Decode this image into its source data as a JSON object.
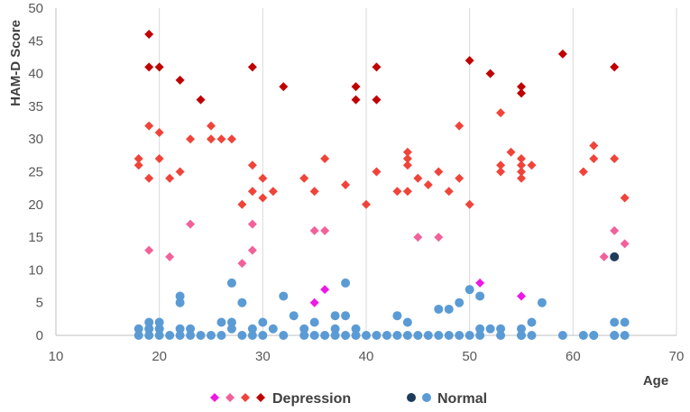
{
  "chart_data": {
    "type": "scatter",
    "xlabel": "Age",
    "ylabel": "HAM-D Score",
    "xlim": [
      10,
      70
    ],
    "ylim": [
      0,
      50
    ],
    "x_ticks": [
      "10",
      "20",
      "30",
      "40",
      "50",
      "60",
      "70"
    ],
    "y_ticks": [
      "0",
      "5",
      "10",
      "15",
      "20",
      "25",
      "30",
      "35",
      "40",
      "45",
      "50"
    ],
    "grid": "vertical",
    "legend_position": "bottom",
    "legend": {
      "depression_label": "Depression",
      "normal_label": "Normal"
    },
    "colors": {
      "severe": "#c00000",
      "moderate": "#f0443a",
      "mild": "#f2619a",
      "minimal": "#ee18e6",
      "normal": "#5b9bd5",
      "normal_dark": "#1f3b5a"
    },
    "series": [
      {
        "name": "Depression (severe)",
        "marker": "diamond",
        "color_key": "severe",
        "x": [
          19,
          19,
          20,
          22,
          24,
          29,
          32,
          39,
          39,
          41,
          41,
          50,
          52,
          55,
          55,
          59,
          64
        ],
        "y": [
          46,
          41,
          41,
          39,
          36,
          41,
          38,
          38,
          36,
          41,
          36,
          42,
          40,
          38,
          37,
          43,
          41
        ]
      },
      {
        "name": "Depression (moderate)",
        "marker": "diamond",
        "color_key": "moderate",
        "x": [
          18,
          18,
          19,
          19,
          20,
          20,
          21,
          22,
          23,
          25,
          25,
          26,
          27,
          28,
          29,
          29,
          30,
          30,
          31,
          34,
          35,
          36,
          38,
          40,
          41,
          43,
          44,
          44,
          44,
          44,
          45,
          46,
          47,
          48,
          49,
          49,
          50,
          53,
          53,
          53,
          54,
          55,
          55,
          55,
          55,
          56,
          61,
          62,
          62,
          64,
          65
        ],
        "y": [
          27,
          26,
          32,
          24,
          31,
          27,
          24,
          25,
          30,
          32,
          30,
          30,
          30,
          20,
          26,
          22,
          24,
          21,
          22,
          24,
          22,
          27,
          23,
          20,
          25,
          22,
          28,
          27,
          26,
          22,
          24,
          23,
          25,
          22,
          32,
          24,
          20,
          34,
          26,
          25,
          28,
          27,
          26,
          25,
          24,
          26,
          25,
          29,
          27,
          27,
          21
        ]
      },
      {
        "name": "Depression (mild)",
        "marker": "diamond",
        "color_key": "mild",
        "x": [
          19,
          21,
          23,
          28,
          29,
          29,
          35,
          36,
          45,
          47,
          63,
          64,
          65
        ],
        "y": [
          13,
          12,
          17,
          11,
          17,
          13,
          16,
          16,
          15,
          15,
          12,
          16,
          14
        ]
      },
      {
        "name": "Depression (minimal)",
        "marker": "diamond",
        "color_key": "minimal",
        "x": [
          35,
          36,
          51,
          55
        ],
        "y": [
          5,
          7,
          8,
          6
        ]
      },
      {
        "name": "Normal",
        "marker": "circle",
        "color_key": "normal",
        "x": [
          18,
          18,
          19,
          19,
          19,
          19,
          20,
          20,
          20,
          20,
          21,
          22,
          22,
          22,
          22,
          23,
          23,
          24,
          25,
          26,
          26,
          27,
          27,
          27,
          28,
          28,
          29,
          29,
          30,
          30,
          31,
          32,
          32,
          33,
          34,
          34,
          35,
          35,
          36,
          37,
          37,
          37,
          38,
          38,
          38,
          39,
          39,
          40,
          41,
          42,
          43,
          43,
          44,
          44,
          45,
          46,
          47,
          47,
          48,
          48,
          49,
          49,
          50,
          50,
          51,
          51,
          51,
          52,
          53,
          53,
          55,
          55,
          55,
          56,
          56,
          57,
          59,
          61,
          62,
          62,
          64,
          64,
          64,
          65,
          65
        ],
        "y": [
          1,
          0,
          2,
          1,
          1,
          0,
          2,
          1,
          1,
          0,
          0,
          6,
          5,
          1,
          0,
          1,
          0,
          0,
          0,
          2,
          0,
          8,
          2,
          1,
          5,
          0,
          1,
          0,
          2,
          0,
          1,
          6,
          0,
          3,
          1,
          0,
          2,
          0,
          0,
          3,
          1,
          0,
          8,
          3,
          0,
          1,
          0,
          0,
          0,
          0,
          3,
          0,
          2,
          0,
          0,
          0,
          4,
          0,
          4,
          0,
          5,
          0,
          7,
          0,
          6,
          1,
          0,
          1,
          1,
          0,
          1,
          0,
          0,
          2,
          0,
          5,
          0,
          0,
          0,
          0,
          2,
          0,
          0,
          2,
          0
        ]
      },
      {
        "name": "Normal (highlighted)",
        "marker": "circle",
        "color_key": "normal_dark",
        "x": [
          64
        ],
        "y": [
          12
        ]
      }
    ]
  }
}
